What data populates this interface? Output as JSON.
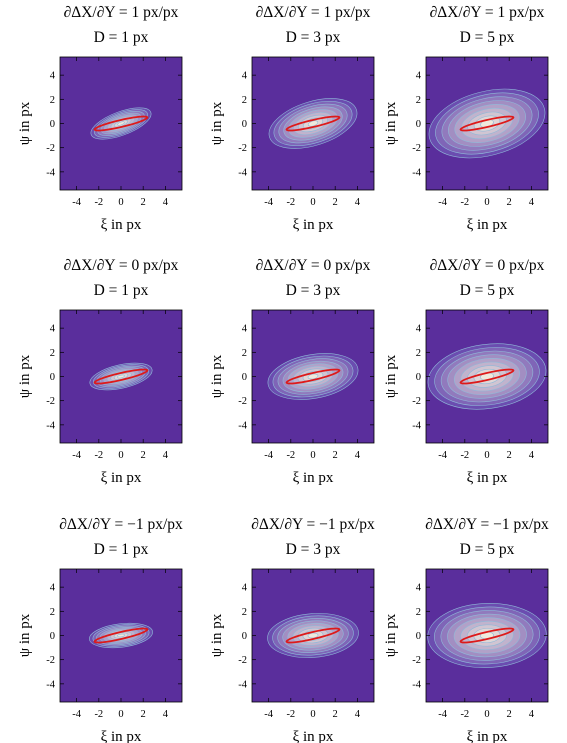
{
  "figure": {
    "xlabel_var": "ξ",
    "ylabel_var": "ψ",
    "unit_suffix": " in px"
  },
  "chart_data": [
    {
      "type": "heatmap",
      "title_line1": "∂ΔX/∂Y = 1 px/px",
      "title_line2": "D = 1 px",
      "shear": 1,
      "D": 1,
      "xlabel": "ξ in px",
      "ylabel": "ψ in px",
      "xlim": [
        -5.5,
        5.5
      ],
      "ylim": [
        -5.5,
        5.5
      ],
      "xticks": [
        -4,
        -2,
        0,
        2,
        4
      ],
      "yticks": [
        -4,
        -2,
        0,
        2,
        4
      ],
      "grid": false
    },
    {
      "type": "heatmap",
      "title_line1": "∂ΔX/∂Y = 1 px/px",
      "title_line2": "D = 3 px",
      "shear": 1,
      "D": 3,
      "xlabel": "ξ in px",
      "ylabel": "ψ in px",
      "xlim": [
        -5.5,
        5.5
      ],
      "ylim": [
        -5.5,
        5.5
      ],
      "xticks": [
        -4,
        -2,
        0,
        2,
        4
      ],
      "yticks": [
        -4,
        -2,
        0,
        2,
        4
      ],
      "grid": false
    },
    {
      "type": "heatmap",
      "title_line1": "∂ΔX/∂Y = 1 px/px",
      "title_line2": "D = 5 px",
      "shear": 1,
      "D": 5,
      "xlabel": "ξ in px",
      "ylabel": "ψ in px",
      "xlim": [
        -5.5,
        5.5
      ],
      "ylim": [
        -5.5,
        5.5
      ],
      "xticks": [
        -4,
        -2,
        0,
        2,
        4
      ],
      "yticks": [
        -4,
        -2,
        0,
        2,
        4
      ],
      "grid": false
    },
    {
      "type": "heatmap",
      "title_line1": "∂ΔX/∂Y = 0 px/px",
      "title_line2": "D = 1 px",
      "shear": 0,
      "D": 1,
      "xlabel": "ξ in px",
      "ylabel": "ψ in px",
      "xlim": [
        -5.5,
        5.5
      ],
      "ylim": [
        -5.5,
        5.5
      ],
      "xticks": [
        -4,
        -2,
        0,
        2,
        4
      ],
      "yticks": [
        -4,
        -2,
        0,
        2,
        4
      ],
      "grid": false
    },
    {
      "type": "heatmap",
      "title_line1": "∂ΔX/∂Y = 0 px/px",
      "title_line2": "D = 3 px",
      "shear": 0,
      "D": 3,
      "xlabel": "ξ in px",
      "ylabel": "ψ in px",
      "xlim": [
        -5.5,
        5.5
      ],
      "ylim": [
        -5.5,
        5.5
      ],
      "xticks": [
        -4,
        -2,
        0,
        2,
        4
      ],
      "yticks": [
        -4,
        -2,
        0,
        2,
        4
      ],
      "grid": false
    },
    {
      "type": "heatmap",
      "title_line1": "∂ΔX/∂Y = 0 px/px",
      "title_line2": "D = 5 px",
      "shear": 0,
      "D": 5,
      "xlabel": "ξ in px",
      "ylabel": "ψ in px",
      "xlim": [
        -5.5,
        5.5
      ],
      "ylim": [
        -5.5,
        5.5
      ],
      "xticks": [
        -4,
        -2,
        0,
        2,
        4
      ],
      "yticks": [
        -4,
        -2,
        0,
        2,
        4
      ],
      "grid": false
    },
    {
      "type": "heatmap",
      "title_line1": "∂ΔX/∂Y = −1 px/px",
      "title_line2": "D = 1 px",
      "shear": -1,
      "D": 1,
      "xlabel": "ξ in px",
      "ylabel": "ψ in px",
      "xlim": [
        -5.5,
        5.5
      ],
      "ylim": [
        -5.5,
        5.5
      ],
      "xticks": [
        -4,
        -2,
        0,
        2,
        4
      ],
      "yticks": [
        -4,
        -2,
        0,
        2,
        4
      ],
      "grid": false
    },
    {
      "type": "heatmap",
      "title_line1": "∂ΔX/∂Y = −1 px/px",
      "title_line2": "D = 3 px",
      "shear": -1,
      "D": 3,
      "xlabel": "ξ in px",
      "ylabel": "ψ in px",
      "xlim": [
        -5.5,
        5.5
      ],
      "ylim": [
        -5.5,
        5.5
      ],
      "xticks": [
        -4,
        -2,
        0,
        2,
        4
      ],
      "yticks": [
        -4,
        -2,
        0,
        2,
        4
      ],
      "grid": false
    },
    {
      "type": "heatmap",
      "title_line1": "∂ΔX/∂Y = −1 px/px",
      "title_line2": "D = 5 px",
      "shear": -1,
      "D": 5,
      "xlabel": "ξ in px",
      "ylabel": "ψ in px",
      "xlim": [
        -5.5,
        5.5
      ],
      "ylim": [
        -5.5,
        5.5
      ],
      "xticks": [
        -4,
        -2,
        0,
        2,
        4
      ],
      "yticks": [
        -4,
        -2,
        0,
        2,
        4
      ],
      "grid": false
    }
  ],
  "colors": {
    "background_fill": "#5a2e9c",
    "contour_outer": "#6b4db0",
    "contour_inner": "#efe9dc",
    "contour_line": "#8fb9d8",
    "red_ellipse": "#dd1a1a",
    "frame": "#000000"
  }
}
